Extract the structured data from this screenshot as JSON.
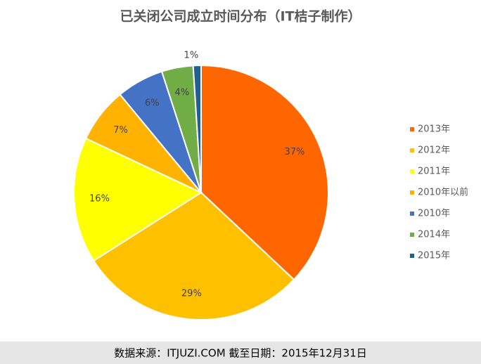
{
  "chart_data": {
    "type": "pie",
    "title": "已关闭公司成立时间分布（IT桔子制作）",
    "categories": [
      "2013年",
      "2012年",
      "2011年",
      "2010年以前",
      "2010年",
      "2014年",
      "2015年"
    ],
    "values": [
      37,
      29,
      16,
      7,
      6,
      4,
      1
    ],
    "value_labels": [
      "37%",
      "29%",
      "16%",
      "7%",
      "6%",
      "4%",
      "1%"
    ],
    "colors": [
      "#ff6600",
      "#ffc000",
      "#ffff00",
      "#ffb300",
      "#4472c4",
      "#70ad47",
      "#255e91"
    ],
    "legend": "right"
  },
  "footer": "数据来源：ITJUZI.COM  截至日期：2015年12月31日"
}
